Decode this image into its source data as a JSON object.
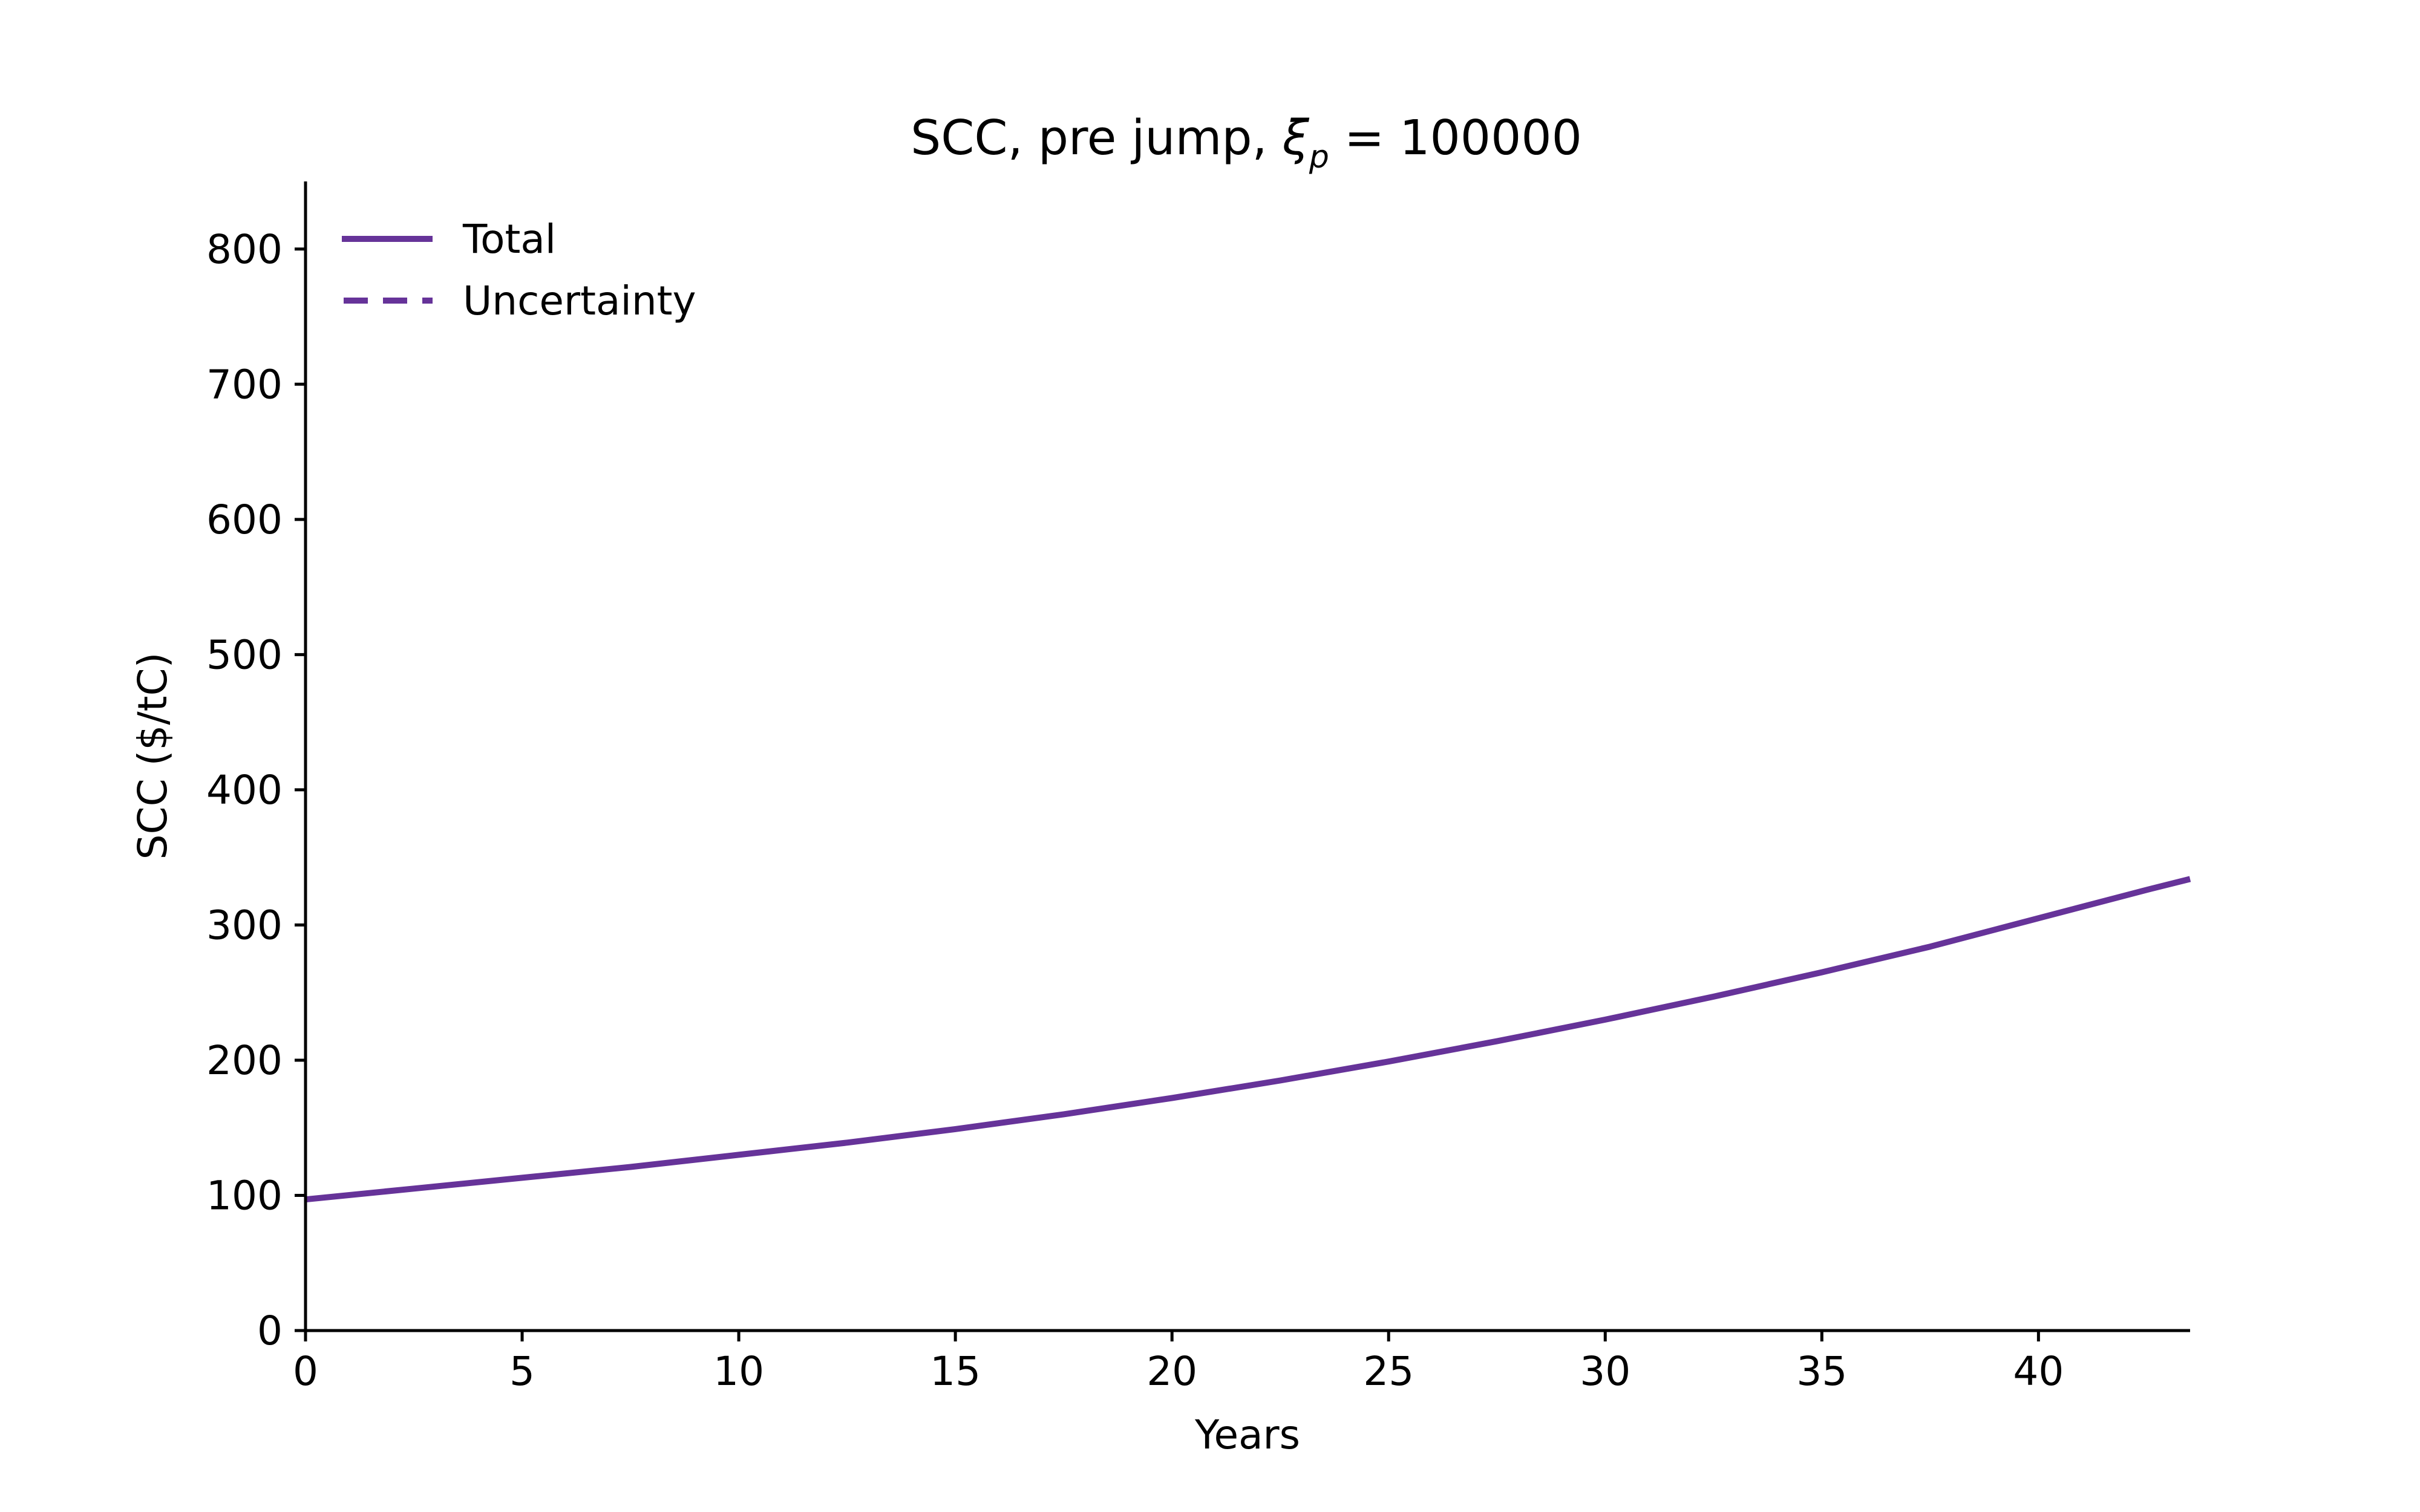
{
  "chart_data": {
    "type": "line",
    "title": {
      "prefix": "SCC, pre jump, ",
      "symbol": "ξ",
      "subscript": "p",
      "suffix": " = 100000"
    },
    "xlabel": "Years",
    "ylabel": "SCC ($/tC)",
    "xlim": [
      0,
      43.5
    ],
    "ylim": [
      0,
      850
    ],
    "xticks": [
      0,
      5,
      10,
      15,
      20,
      25,
      30,
      35,
      40
    ],
    "yticks": [
      0,
      100,
      200,
      300,
      400,
      500,
      600,
      700,
      800
    ],
    "grid": false,
    "legend_position": "top-left",
    "color": "#663399",
    "series": [
      {
        "name": "Total",
        "style": "solid",
        "x": [
          0,
          2.5,
          5,
          7.5,
          10,
          12.5,
          15,
          17.5,
          20,
          22.5,
          25,
          27.5,
          30,
          32.5,
          35,
          37.5,
          40,
          42.5,
          43.5
        ],
        "y": [
          97,
          105,
          113,
          121,
          130,
          139,
          149,
          160,
          172,
          185,
          199,
          214,
          230,
          247,
          265,
          284,
          305,
          326,
          334
        ]
      },
      {
        "name": "Uncertainty",
        "style": "dashed",
        "x": [],
        "y": []
      }
    ]
  }
}
